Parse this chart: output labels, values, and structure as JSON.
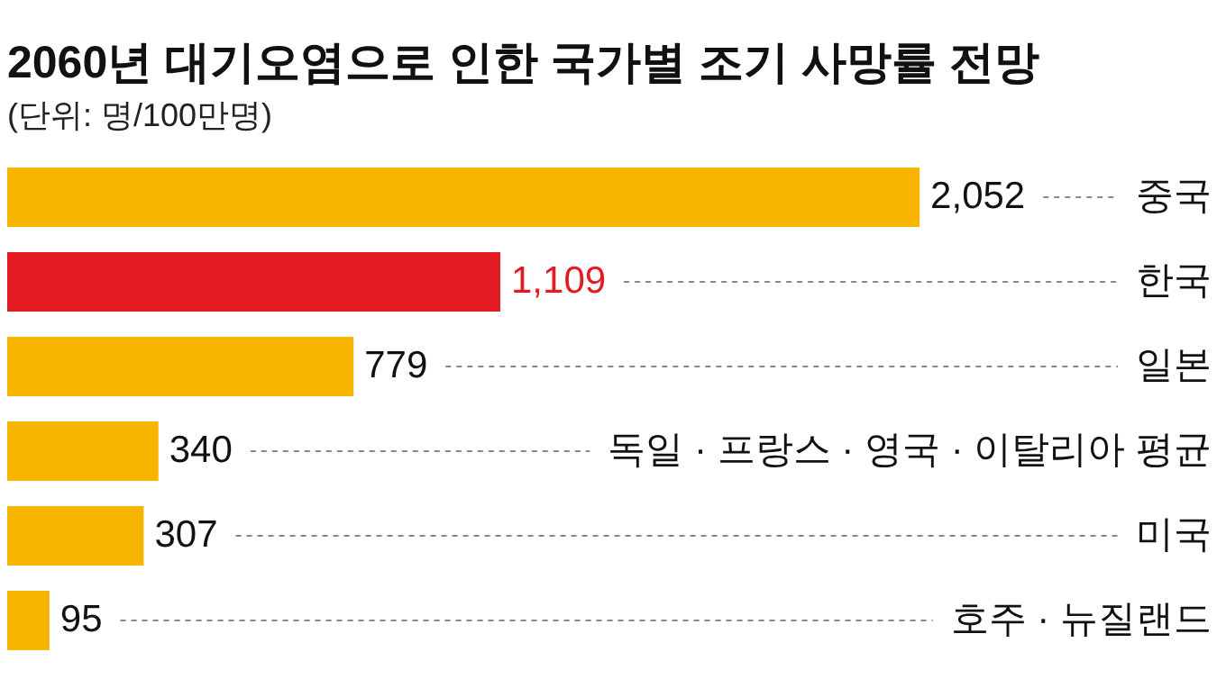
{
  "chart_data": {
    "type": "bar",
    "orientation": "horizontal",
    "title": "2060년 대기오염으로 인한 국가별 조기 사망률 전망",
    "subtitle": "(단위: 명/100만명)",
    "categories": [
      "중국",
      "한국",
      "일본",
      "독일 · 프랑스 · 영국 · 이탈리아 평균",
      "미국",
      "호주 · 뉴질랜드"
    ],
    "values": [
      2052,
      1109,
      779,
      340,
      307,
      95
    ],
    "colors": [
      "#f7b500",
      "#e31b23",
      "#f7b500",
      "#f7b500",
      "#f7b500",
      "#f7b500"
    ],
    "value_labels": [
      "2,052",
      "1,109",
      "779",
      "340",
      "307",
      "95"
    ]
  }
}
